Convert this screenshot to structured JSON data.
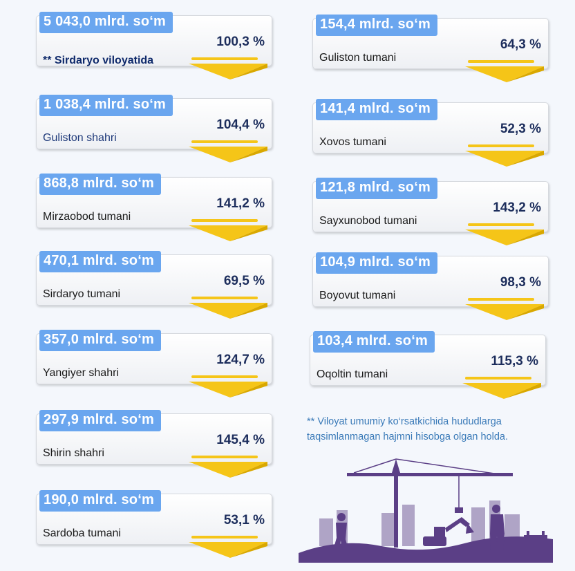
{
  "cards": [
    {
      "amount": "5 043,0 mlrd. so‘m",
      "region": "** Sirdaryo viloyatida",
      "percent": "100,3 %"
    },
    {
      "amount": "1 038,4 mlrd. so‘m",
      "region": "Guliston shahri",
      "percent": "104,4 %"
    },
    {
      "amount": "868,8 mlrd. so‘m",
      "region": "Mirzaobod tumani",
      "percent": "141,2 %"
    },
    {
      "amount": "470,1 mlrd. so‘m",
      "region": "Sirdaryo tumani",
      "percent": "69,5 %"
    },
    {
      "amount": "357,0 mlrd. so‘m",
      "region": "Yangiyer shahri",
      "percent": "124,7 %"
    },
    {
      "amount": "297,9 mlrd. so‘m",
      "region": "Shirin shahri",
      "percent": "145,4 %"
    },
    {
      "amount": "190,0 mlrd. so‘m",
      "region": "Sardoba tumani",
      "percent": "53,1 %"
    },
    {
      "amount": "154,4 mlrd. so‘m",
      "region": "Guliston tumani",
      "percent": "64,3 %"
    },
    {
      "amount": "141,4 mlrd. so‘m",
      "region": "Xovos tumani",
      "percent": "52,3 %"
    },
    {
      "amount": "121,8 mlrd. so‘m",
      "region": "Sayxunobod tumani",
      "percent": "143,2 %"
    },
    {
      "amount": "104,9 mlrd. so‘m",
      "region": "Boyovut tumani",
      "percent": "98,3 %"
    },
    {
      "amount": "103,4 mlrd. so‘m",
      "region": "Oqoltin tumani",
      "percent": "115,3 %"
    }
  ],
  "footnote": "** Viloyat umumiy ko‘rsatkichida hududlarga taqsimlanmagan hajmni hisobga olgan holda.",
  "colors": {
    "amount_bg": "#6aa6ef",
    "percent_text": "#1c2d5c",
    "ribbon": "#f5c518",
    "footnote_text": "#3a7ab8",
    "illustration": "#5b3f86"
  }
}
